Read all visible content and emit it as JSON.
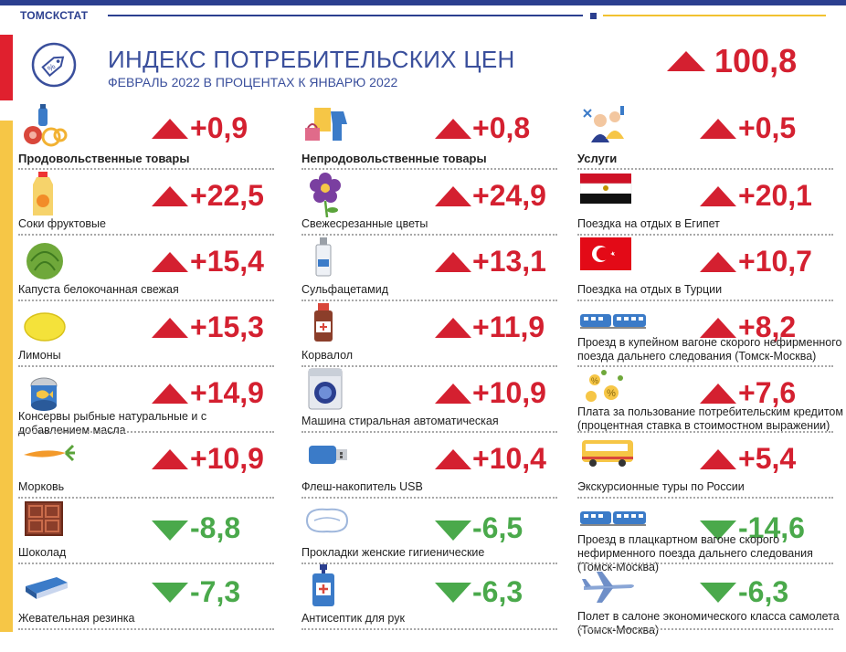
{
  "header": {
    "org": "ТОМСКСТАТ",
    "title": "ИНДЕКС ПОТРЕБИТЕЛЬСКИХ ЦЕН",
    "subtitle": "ФЕВРАЛЬ 2022 В ПРОЦЕНТАХ К  ЯНВАРЮ 2022",
    "total": "100,8",
    "total_direction": "up"
  },
  "colors": {
    "up": "#d42030",
    "down": "#4aa94b",
    "brand": "#2b3f8f",
    "accent_yellow": "#f6c646",
    "accent_red": "#e0202e"
  },
  "columns": [
    {
      "items": [
        {
          "label": "Продовольственные товары",
          "value": "+0,9",
          "dir": "up",
          "icon": "food-basket-icon",
          "category": true
        },
        {
          "label": "Соки фруктовые",
          "value": "+22,5",
          "dir": "up",
          "icon": "juice-bottle-icon"
        },
        {
          "label": "Капуста белокочанная свежая",
          "value": "+15,4",
          "dir": "up",
          "icon": "cabbage-icon"
        },
        {
          "label": "Лимоны",
          "value": "+15,3",
          "dir": "up",
          "icon": "lemon-icon"
        },
        {
          "label": "Консервы  рыбные натуральные и с добавлением масла",
          "value": "+14,9",
          "dir": "up",
          "icon": "fish-can-icon"
        },
        {
          "label": "Морковь",
          "value": "+10,9",
          "dir": "up",
          "icon": "carrot-icon"
        },
        {
          "label": "Шоколад",
          "value": "-8,8",
          "dir": "down",
          "icon": "chocolate-icon"
        },
        {
          "label": "Жевательная резинка",
          "value": "-7,3",
          "dir": "down",
          "icon": "chewing-gum-icon"
        }
      ]
    },
    {
      "items": [
        {
          "label": "Непродовольственные товары",
          "value": "+0,8",
          "dir": "up",
          "icon": "clothes-icon",
          "category": true
        },
        {
          "label": "Свежесрезанные  цветы",
          "value": "+24,9",
          "dir": "up",
          "icon": "flower-icon"
        },
        {
          "label": "Сульфацетамид",
          "value": "+13,1",
          "dir": "up",
          "icon": "eye-drops-icon"
        },
        {
          "label": "Корвалол",
          "value": "+11,9",
          "dir": "up",
          "icon": "medicine-bottle-icon"
        },
        {
          "label": "Машина стиральная автоматическая",
          "value": "+10,9",
          "dir": "up",
          "icon": "washing-machine-icon"
        },
        {
          "label": "Флеш-накопитель USB",
          "value": "+10,4",
          "dir": "up",
          "icon": "usb-flash-icon"
        },
        {
          "label": "Прокладки  женские гигиенические",
          "value": "-6,5",
          "dir": "down",
          "icon": "sanitary-pad-icon"
        },
        {
          "label": "Антисептик для рук",
          "value": "-6,3",
          "dir": "down",
          "icon": "antiseptic-icon"
        }
      ]
    },
    {
      "items": [
        {
          "label": "Услуги",
          "value": "+0,5",
          "dir": "up",
          "icon": "services-people-icon",
          "category": true
        },
        {
          "label": "Поездка  на отдых в Египет",
          "value": "+20,1",
          "dir": "up",
          "icon": "egypt-flag-icon"
        },
        {
          "label": "Поездка  на отдых в Турции",
          "value": "+10,7",
          "dir": "up",
          "icon": "turkey-flag-icon"
        },
        {
          "label": "Проезд  в купейном вагоне скорого нефирменного поезда дальнего следования (Томск-Москва)",
          "value": "+8,2",
          "dir": "up",
          "icon": "train-icon"
        },
        {
          "label": "Плата за пользование  потребительским кредитом (процентная ставка в стоимостном выражении)",
          "value": "+7,6",
          "dir": "up",
          "icon": "coins-icon"
        },
        {
          "label": "Экскурсионные туры по России",
          "value": "+5,4",
          "dir": "up",
          "icon": "bus-icon"
        },
        {
          "label": "Проезд  в плацкартном вагоне скорого нефирменного поезда дальнего следования (Томск-Москва)",
          "value": "-14,6",
          "dir": "down",
          "icon": "train-icon"
        },
        {
          "label": "Полет в салоне экономического  класса самолета (Томск-Москва)",
          "value": "-6,3",
          "dir": "down",
          "icon": "airplane-icon"
        }
      ]
    }
  ]
}
